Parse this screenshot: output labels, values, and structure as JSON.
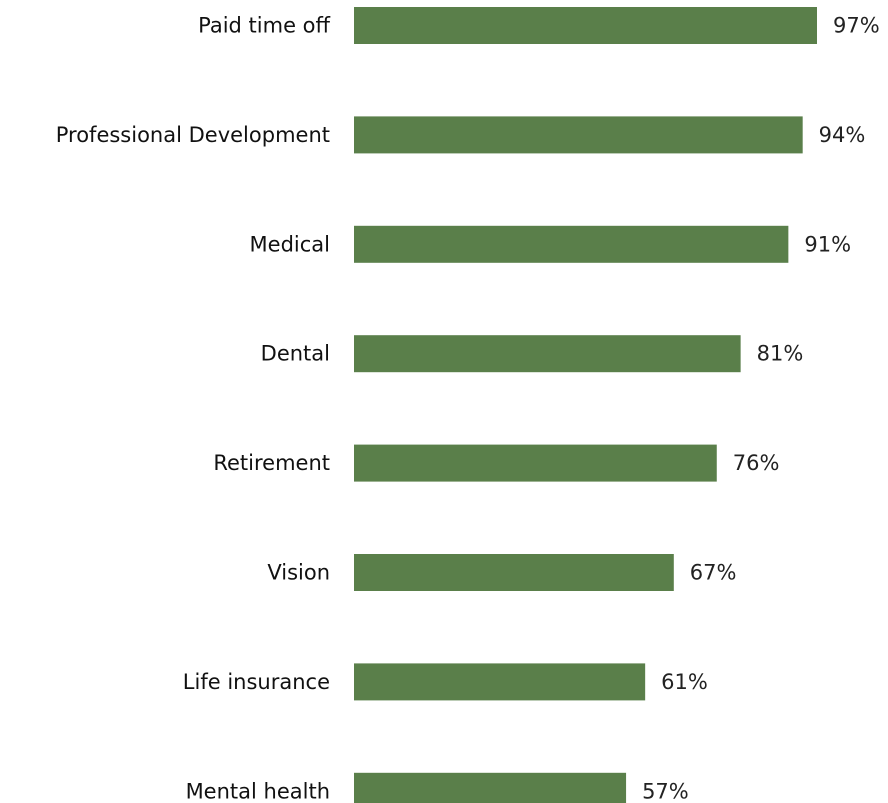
{
  "chart_data": {
    "type": "bar",
    "orientation": "horizontal",
    "categories": [
      "Paid time off",
      "Professional Development",
      "Medical",
      "Dental",
      "Retirement",
      "Vision",
      "Life insurance",
      "Mental health"
    ],
    "values": [
      97,
      94,
      91,
      81,
      76,
      67,
      61,
      57
    ],
    "value_labels": [
      "97%",
      "94%",
      "91%",
      "81%",
      "76%",
      "67%",
      "61%",
      "57%"
    ],
    "unit": "%",
    "xlim": [
      0,
      100
    ],
    "grid": false,
    "legend": "none",
    "bar_color": "#5a7f4a",
    "title": "",
    "xlabel": "",
    "ylabel": ""
  }
}
